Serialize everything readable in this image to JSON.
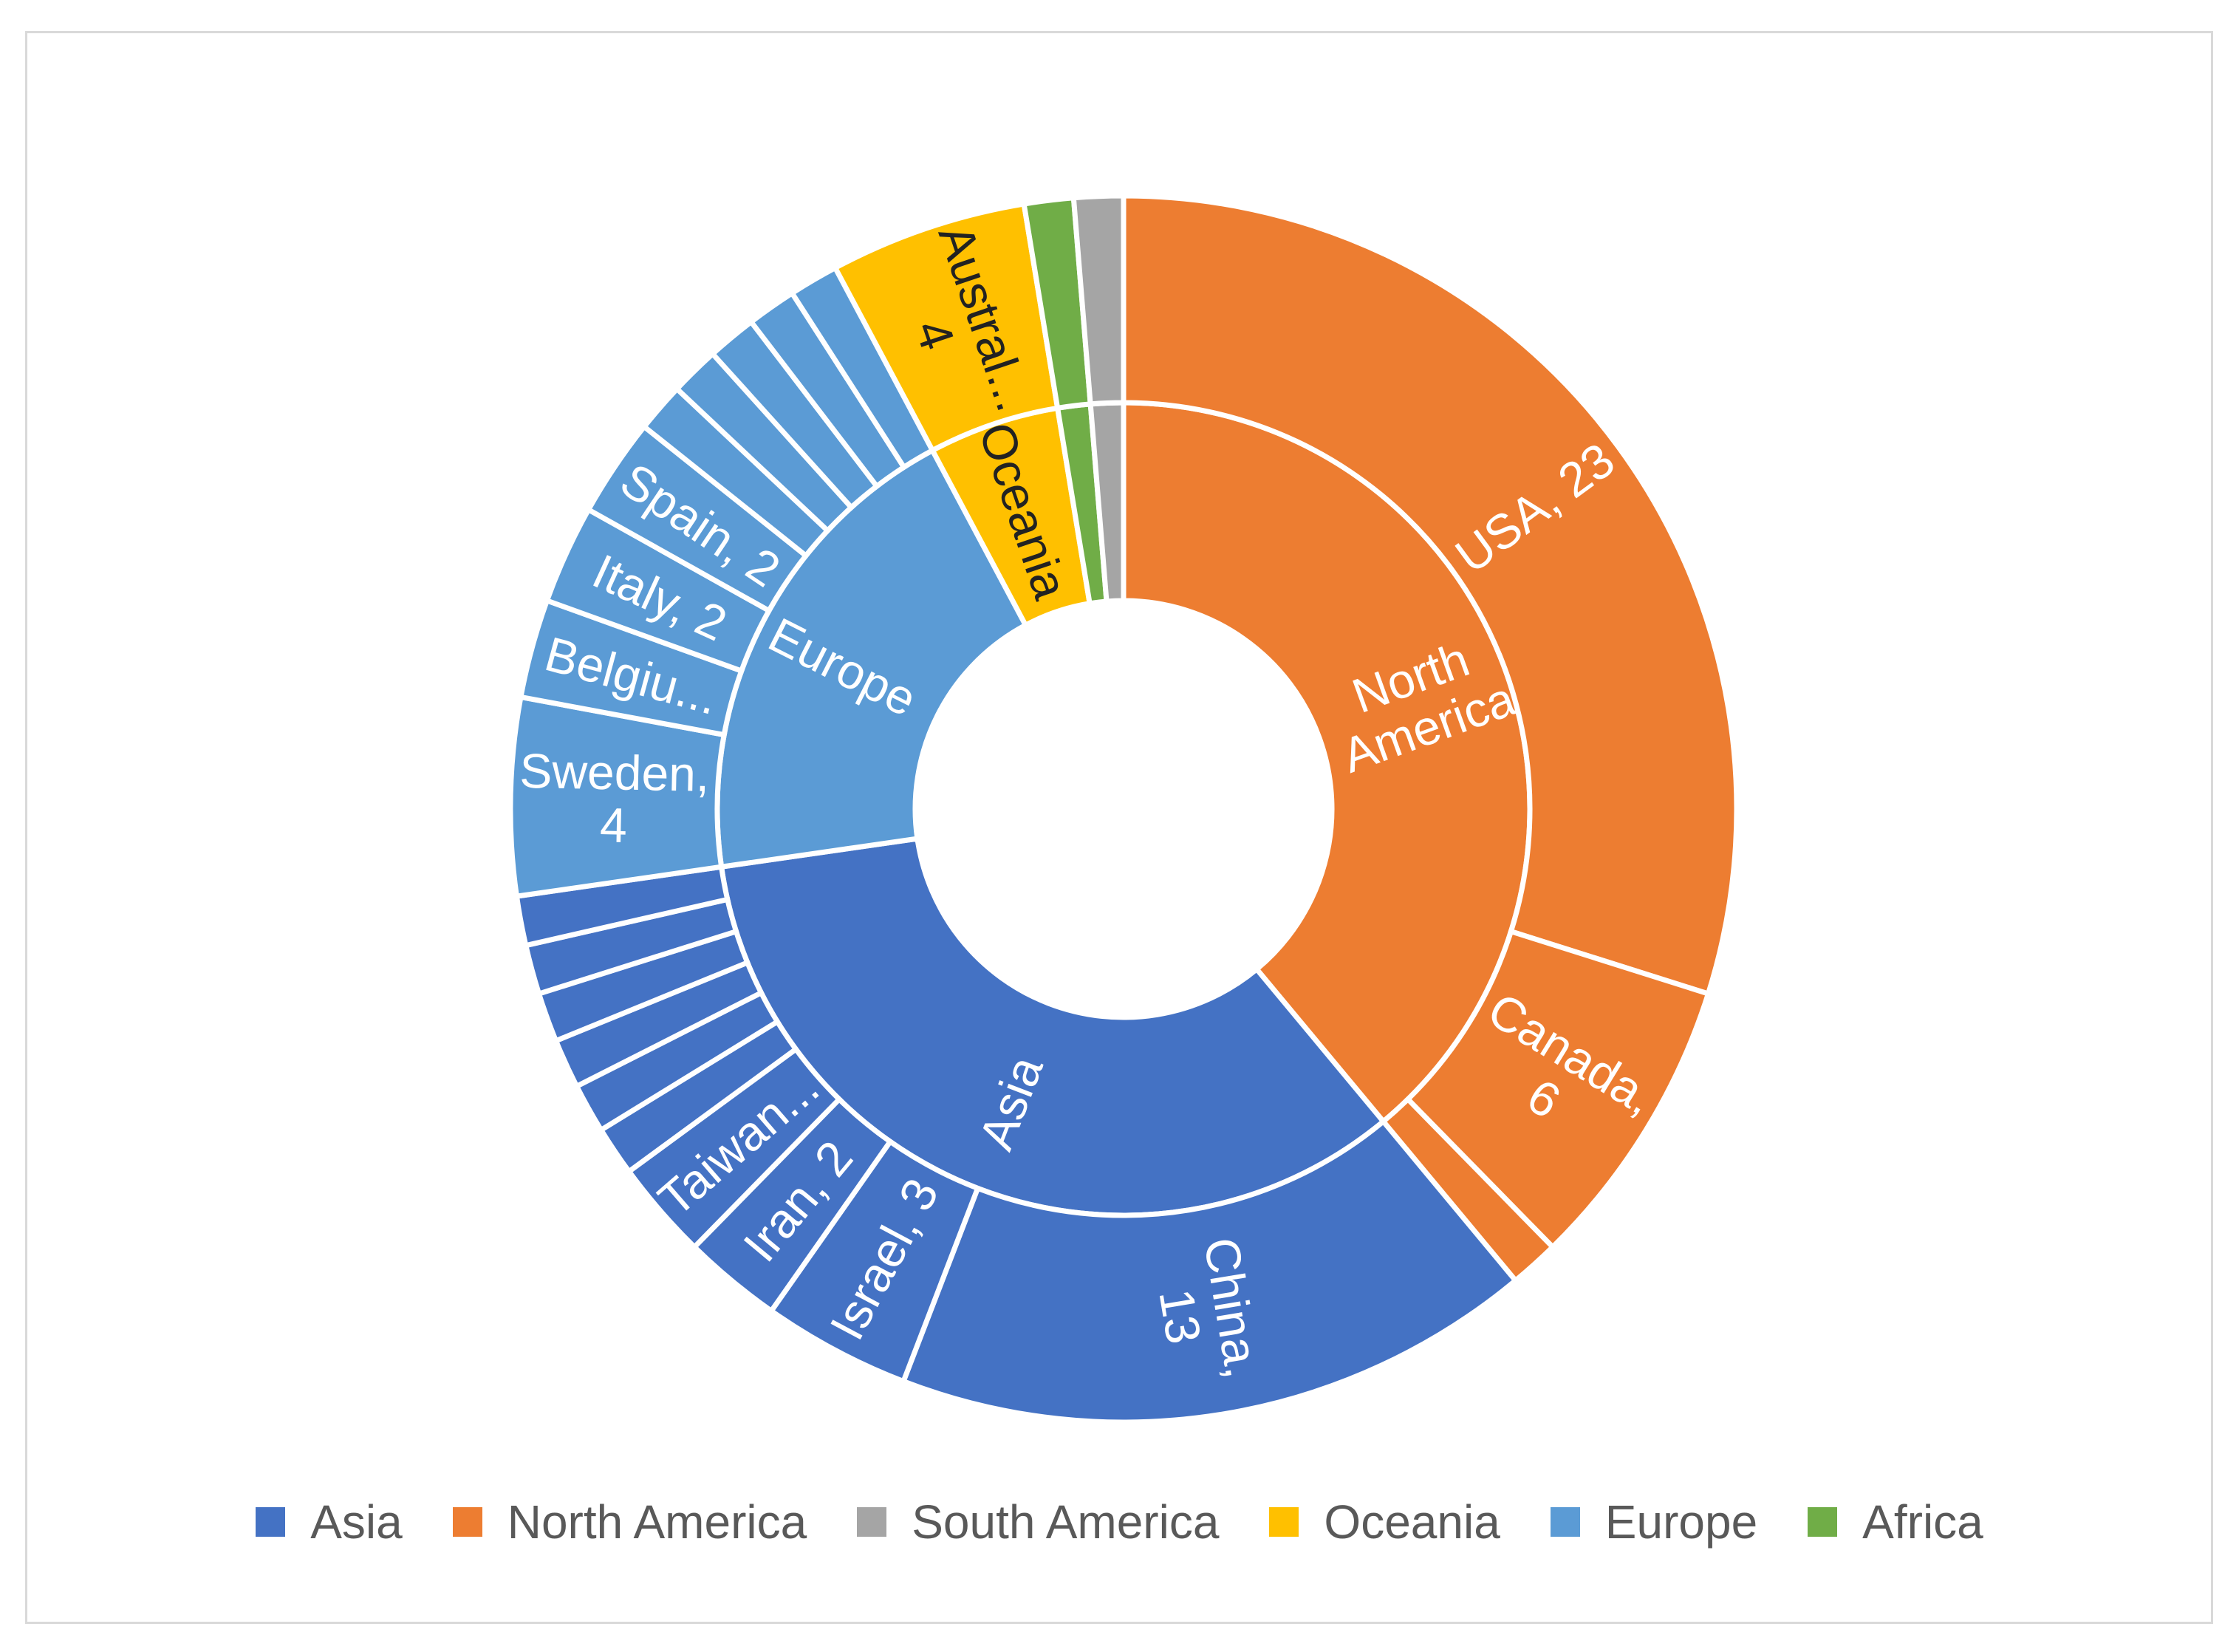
{
  "chart_data": {
    "type": "sunburst",
    "title": "",
    "legend_position": "bottom",
    "colors": {
      "Asia": "#4472C4",
      "North America": "#ED7D31",
      "South America": "#A5A5A5",
      "Oceania": "#FFC000",
      "Europe": "#5B9BD5",
      "Africa": "#70AD47"
    },
    "legend": [
      "Asia",
      "North America",
      "South America",
      "Oceania",
      "Europe",
      "Africa"
    ],
    "inner_ring": [
      {
        "name": "North America",
        "value": 30,
        "label": "North America",
        "label_lines": [
          "North",
          "America"
        ]
      },
      {
        "name": "Asia",
        "value": 26,
        "label": "Asia",
        "label_lines": [
          "Asia"
        ]
      },
      {
        "name": "Europe",
        "value": 15,
        "label": "Europe",
        "label_lines": [
          "Europe"
        ]
      },
      {
        "name": "Oceania",
        "value": 4,
        "label": "Oceania",
        "label_lines": [
          "Oceania"
        ]
      },
      {
        "name": "Africa",
        "value": 1,
        "label": "",
        "label_lines": []
      },
      {
        "name": "South America",
        "value": 1,
        "label": "",
        "label_lines": []
      }
    ],
    "outer_ring": [
      {
        "parent": "North America",
        "name": "USA",
        "value": 23,
        "label_lines": [
          "USA, 23"
        ]
      },
      {
        "parent": "North America",
        "name": "Canada",
        "value": 6,
        "label_lines": [
          "Canada,",
          "6"
        ]
      },
      {
        "parent": "North America",
        "name": "",
        "value": 1,
        "label_lines": []
      },
      {
        "parent": "Asia",
        "name": "China",
        "value": 13,
        "label_lines": [
          "China,",
          "13"
        ]
      },
      {
        "parent": "Asia",
        "name": "Israel",
        "value": 3,
        "label_lines": [
          "Israel, 3"
        ]
      },
      {
        "parent": "Asia",
        "name": "Iran",
        "value": 2,
        "label_lines": [
          "Iran, 2"
        ]
      },
      {
        "parent": "Asia",
        "name": "Taiwan",
        "value": 2,
        "label_lines": [
          "Taiwan..."
        ]
      },
      {
        "parent": "Asia",
        "name": "",
        "value": 1,
        "label_lines": []
      },
      {
        "parent": "Asia",
        "name": "",
        "value": 1,
        "label_lines": []
      },
      {
        "parent": "Asia",
        "name": "",
        "value": 1,
        "label_lines": []
      },
      {
        "parent": "Asia",
        "name": "",
        "value": 1,
        "label_lines": []
      },
      {
        "parent": "Asia",
        "name": "",
        "value": 1,
        "label_lines": []
      },
      {
        "parent": "Asia",
        "name": "",
        "value": 1,
        "label_lines": []
      },
      {
        "parent": "Europe",
        "name": "Sweden",
        "value": 4,
        "label_lines": [
          "Sweden,",
          "4"
        ]
      },
      {
        "parent": "Europe",
        "name": "Belgium",
        "value": 2,
        "label_lines": [
          "Belgiu..."
        ]
      },
      {
        "parent": "Europe",
        "name": "Italy",
        "value": 2,
        "label_lines": [
          "Italy, 2"
        ]
      },
      {
        "parent": "Europe",
        "name": "Spain",
        "value": 2,
        "label_lines": [
          "Spain, 2"
        ]
      },
      {
        "parent": "Europe",
        "name": "",
        "value": 1,
        "label_lines": []
      },
      {
        "parent": "Europe",
        "name": "",
        "value": 1,
        "label_lines": []
      },
      {
        "parent": "Europe",
        "name": "",
        "value": 1,
        "label_lines": []
      },
      {
        "parent": "Europe",
        "name": "",
        "value": 1,
        "label_lines": []
      },
      {
        "parent": "Europe",
        "name": "",
        "value": 1,
        "label_lines": []
      },
      {
        "parent": "Oceania",
        "name": "Australia",
        "value": 4,
        "label_lines": [
          "Austral...",
          "4"
        ]
      },
      {
        "parent": "Africa",
        "name": "",
        "value": 1,
        "label_lines": []
      },
      {
        "parent": "South America",
        "name": "",
        "value": 1,
        "label_lines": []
      }
    ]
  }
}
